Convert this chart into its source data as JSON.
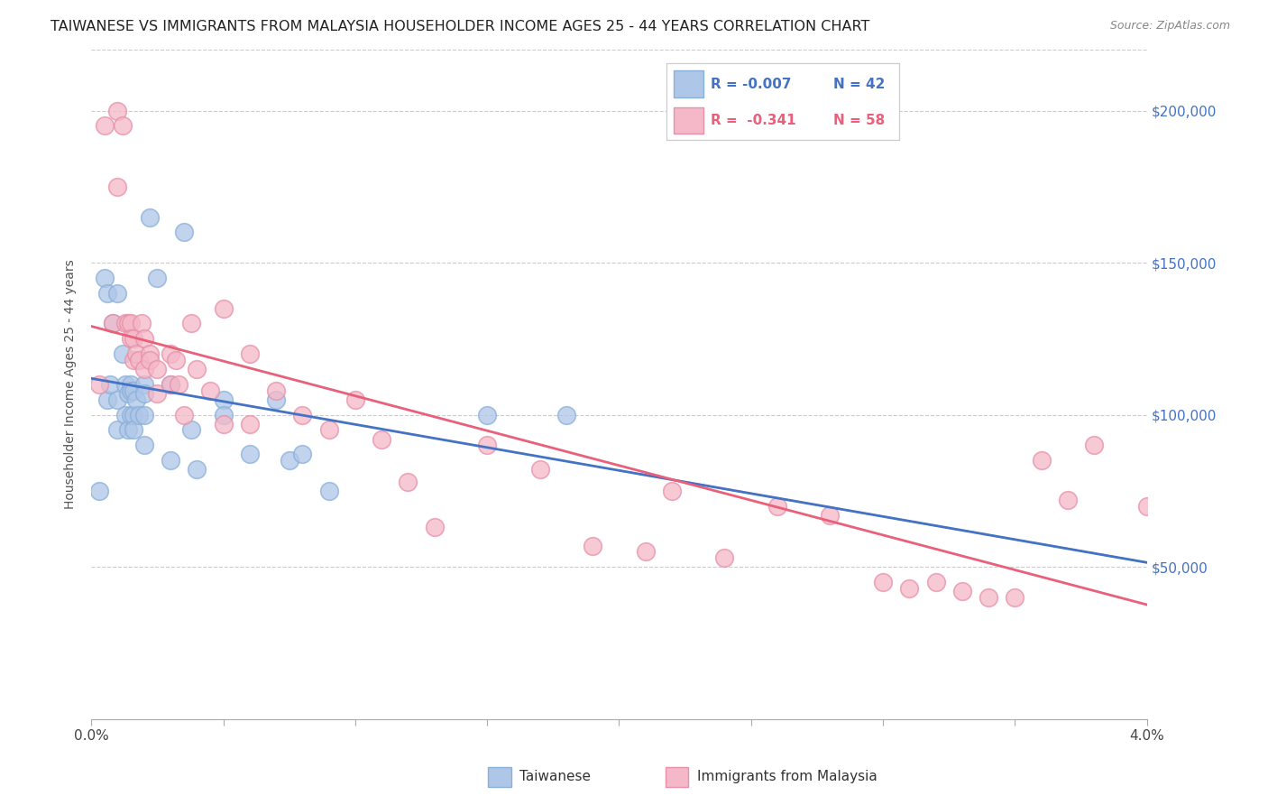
{
  "title": "TAIWANESE VS IMMIGRANTS FROM MALAYSIA HOUSEHOLDER INCOME AGES 25 - 44 YEARS CORRELATION CHART",
  "source": "Source: ZipAtlas.com",
  "ylabel": "Householder Income Ages 25 - 44 years",
  "xlim": [
    0.0,
    0.04
  ],
  "ylim": [
    0,
    220000
  ],
  "xticks": [
    0.0,
    0.005,
    0.01,
    0.015,
    0.02,
    0.025,
    0.03,
    0.035,
    0.04
  ],
  "xticklabels": [
    "0.0%",
    "",
    "",
    "",
    "",
    "",
    "",
    "",
    "4.0%"
  ],
  "yticks": [
    50000,
    100000,
    150000,
    200000
  ],
  "yticklabels": [
    "$50,000",
    "$100,000",
    "$150,000",
    "$200,000"
  ],
  "taiwanese_x": [
    0.0003,
    0.0005,
    0.0006,
    0.0006,
    0.0007,
    0.0008,
    0.001,
    0.001,
    0.001,
    0.0012,
    0.0013,
    0.0013,
    0.0014,
    0.0014,
    0.0015,
    0.0015,
    0.0015,
    0.0016,
    0.0016,
    0.0016,
    0.0017,
    0.0018,
    0.002,
    0.002,
    0.002,
    0.002,
    0.0022,
    0.0025,
    0.003,
    0.003,
    0.0035,
    0.0038,
    0.004,
    0.005,
    0.005,
    0.006,
    0.007,
    0.0075,
    0.008,
    0.009,
    0.015,
    0.018
  ],
  "taiwanese_y": [
    75000,
    145000,
    140000,
    105000,
    110000,
    130000,
    140000,
    105000,
    95000,
    120000,
    110000,
    100000,
    107000,
    95000,
    110000,
    108000,
    100000,
    108000,
    100000,
    95000,
    105000,
    100000,
    110000,
    107000,
    100000,
    90000,
    165000,
    145000,
    110000,
    85000,
    160000,
    95000,
    82000,
    105000,
    100000,
    87000,
    105000,
    85000,
    87000,
    75000,
    100000,
    100000
  ],
  "malaysia_x": [
    0.0003,
    0.0005,
    0.0008,
    0.001,
    0.001,
    0.0012,
    0.0013,
    0.0014,
    0.0015,
    0.0015,
    0.0016,
    0.0016,
    0.0017,
    0.0018,
    0.0019,
    0.002,
    0.002,
    0.0022,
    0.0022,
    0.0025,
    0.0025,
    0.003,
    0.003,
    0.0032,
    0.0033,
    0.0035,
    0.0038,
    0.004,
    0.0045,
    0.005,
    0.005,
    0.006,
    0.006,
    0.007,
    0.008,
    0.009,
    0.01,
    0.011,
    0.012,
    0.013,
    0.015,
    0.017,
    0.019,
    0.021,
    0.022,
    0.024,
    0.026,
    0.028,
    0.03,
    0.031,
    0.032,
    0.033,
    0.034,
    0.035,
    0.036,
    0.037,
    0.038,
    0.04
  ],
  "malaysia_y": [
    110000,
    195000,
    130000,
    200000,
    175000,
    195000,
    130000,
    130000,
    130000,
    125000,
    125000,
    118000,
    120000,
    118000,
    130000,
    125000,
    115000,
    120000,
    118000,
    115000,
    107000,
    120000,
    110000,
    118000,
    110000,
    100000,
    130000,
    115000,
    108000,
    135000,
    97000,
    120000,
    97000,
    108000,
    100000,
    95000,
    105000,
    92000,
    78000,
    63000,
    90000,
    82000,
    57000,
    55000,
    75000,
    53000,
    70000,
    67000,
    45000,
    43000,
    45000,
    42000,
    40000,
    40000,
    85000,
    72000,
    90000,
    70000
  ],
  "blue_line_color": "#4472c4",
  "pink_line_color": "#e8607a",
  "dot_blue_color": "#aec6e8",
  "dot_pink_color": "#f4b8c8",
  "dot_blue_edge": "#8ab0d8",
  "dot_pink_edge": "#e890a8",
  "background_color": "#ffffff",
  "grid_color": "#cccccc",
  "title_fontsize": 11.5,
  "axis_label_fontsize": 10,
  "tick_fontsize": 11,
  "right_tick_color": "#4472c4",
  "legend_r1": "R = -0.007",
  "legend_n1": "N = 42",
  "legend_r2": "R =  -0.341",
  "legend_n2": "N = 58"
}
